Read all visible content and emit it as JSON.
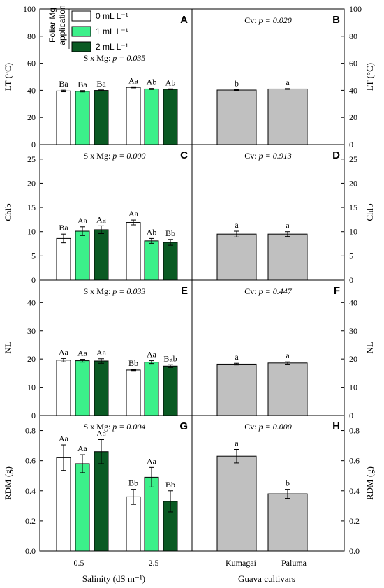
{
  "colors": {
    "control": "#ffffff",
    "mg1": "#3cf08a",
    "mg2": "#0a5a23",
    "cultivar": "#c0c0c0",
    "axis": "#000000"
  },
  "legend": {
    "title_line1": "Foliar Mg",
    "title_line2": "application",
    "entries": [
      "0 mL L⁻¹",
      "1 mL L⁻¹",
      "2 mL L⁻¹"
    ]
  },
  "x_left": {
    "label": "Salinity (dS m⁻¹)",
    "ticks": [
      "0.5",
      "2.5"
    ]
  },
  "x_right": {
    "label": "Guava cultivars",
    "ticks": [
      "Kumagai",
      "Paluma"
    ]
  },
  "chart_data": [
    {
      "type": "bar",
      "panel": "A",
      "ylabel": "LT (°C)",
      "ylim": [
        0,
        100
      ],
      "yticks": [
        0,
        20,
        40,
        60,
        80,
        100
      ],
      "test_label": "S x Mg: ",
      "p_label": "p = 0.035",
      "categories": [
        "0.5",
        "2.5"
      ],
      "series": [
        {
          "name": "0 mL L⁻¹",
          "values": [
            39.5,
            42.2
          ],
          "errors": [
            0.6,
            0.4
          ],
          "letters": [
            "Ba",
            "Aa"
          ]
        },
        {
          "name": "1 mL L⁻¹",
          "values": [
            39.3,
            41.0
          ],
          "errors": [
            0.5,
            0.4
          ],
          "letters": [
            "Ba",
            "Ab"
          ]
        },
        {
          "name": "2 mL L⁻¹",
          "values": [
            39.9,
            40.8
          ],
          "errors": [
            0.4,
            0.3
          ],
          "letters": [
            "Ba",
            "Ab"
          ]
        }
      ]
    },
    {
      "type": "bar",
      "panel": "B",
      "ylabel": "LT (°C)",
      "ylim": [
        0,
        100
      ],
      "yticks": [
        0,
        20,
        40,
        60,
        80,
        100
      ],
      "test_label": "Cv: ",
      "p_label": "p = 0.020",
      "categories": [
        "Kumagai",
        "Paluma"
      ],
      "values": [
        40.2,
        41.0
      ],
      "errors": [
        0.3,
        0.3
      ],
      "letters": [
        "b",
        "a"
      ]
    },
    {
      "type": "bar",
      "panel": "C",
      "ylabel": "Chlb",
      "ylim": [
        0,
        28
      ],
      "yticks": [
        0,
        5,
        10,
        15,
        20,
        25
      ],
      "test_label": "S x Mg: ",
      "p_label": "p = 0.000",
      "categories": [
        "0.5",
        "2.5"
      ],
      "series": [
        {
          "name": "0 mL L⁻¹",
          "values": [
            8.6,
            11.9
          ],
          "errors": [
            0.9,
            0.5
          ],
          "letters": [
            "Ba",
            "Aa"
          ]
        },
        {
          "name": "1 mL L⁻¹",
          "values": [
            10.1,
            8.1
          ],
          "errors": [
            0.9,
            0.5
          ],
          "letters": [
            "Aa",
            "Ab"
          ]
        },
        {
          "name": "2 mL L⁻¹",
          "values": [
            10.4,
            7.8
          ],
          "errors": [
            0.8,
            0.6
          ],
          "letters": [
            "Aa",
            "Bb"
          ]
        }
      ]
    },
    {
      "type": "bar",
      "panel": "D",
      "ylabel": "Chlb",
      "ylim": [
        0,
        28
      ],
      "yticks": [
        0,
        5,
        10,
        15,
        20,
        25
      ],
      "test_label": "Cv: ",
      "p_label": "p = 0.913",
      "categories": [
        "Kumagai",
        "Paluma"
      ],
      "values": [
        9.5,
        9.5
      ],
      "errors": [
        0.6,
        0.5
      ],
      "letters": [
        "a",
        "a"
      ]
    },
    {
      "type": "bar",
      "panel": "E",
      "ylabel": "NL",
      "ylim": [
        0,
        48
      ],
      "yticks": [
        0,
        10,
        20,
        30,
        40
      ],
      "test_label": "S x Mg: ",
      "p_label": "p = 0.033",
      "categories": [
        "0.5",
        "2.5"
      ],
      "series": [
        {
          "name": "0 mL L⁻¹",
          "values": [
            19.6,
            16.1
          ],
          "errors": [
            0.6,
            0.2
          ],
          "letters": [
            "Aa",
            "Bb"
          ]
        },
        {
          "name": "1 mL L⁻¹",
          "values": [
            19.4,
            18.9
          ],
          "errors": [
            0.5,
            0.5
          ],
          "letters": [
            "Aa",
            "Aa"
          ]
        },
        {
          "name": "2 mL L⁻¹",
          "values": [
            19.3,
            17.5
          ],
          "errors": [
            0.8,
            0.5
          ],
          "letters": [
            "Aa",
            "Bab"
          ]
        }
      ]
    },
    {
      "type": "bar",
      "panel": "F",
      "ylabel": "NL",
      "ylim": [
        0,
        48
      ],
      "yticks": [
        0,
        10,
        20,
        30,
        40
      ],
      "test_label": "Cv: ",
      "p_label": "p = 0.447",
      "categories": [
        "Kumagai",
        "Paluma"
      ],
      "values": [
        18.2,
        18.6
      ],
      "errors": [
        0.3,
        0.4
      ],
      "letters": [
        "a",
        "a"
      ]
    },
    {
      "type": "bar",
      "panel": "G",
      "ylabel": "RDM (g)",
      "ylim": [
        0,
        0.9
      ],
      "yticks": [
        0.0,
        0.2,
        0.4,
        0.6,
        0.8
      ],
      "test_label": "S x Mg: ",
      "p_label": "p = 0.004",
      "categories": [
        "0.5",
        "2.5"
      ],
      "series": [
        {
          "name": "0 mL L⁻¹",
          "values": [
            0.62,
            0.36
          ],
          "errors": [
            0.085,
            0.05
          ],
          "letters": [
            "Aa",
            "Bb"
          ]
        },
        {
          "name": "1 mL L⁻¹",
          "values": [
            0.58,
            0.49
          ],
          "errors": [
            0.06,
            0.065
          ],
          "letters": [
            "Aa",
            "Aa"
          ]
        },
        {
          "name": "2 mL L⁻¹",
          "values": [
            0.66,
            0.33
          ],
          "errors": [
            0.08,
            0.07
          ],
          "letters": [
            "Aa",
            "Bb"
          ]
        }
      ]
    },
    {
      "type": "bar",
      "panel": "H",
      "ylabel": "RDM (g)",
      "ylim": [
        0,
        0.9
      ],
      "yticks": [
        0.0,
        0.2,
        0.4,
        0.6,
        0.8
      ],
      "test_label": "Cv: ",
      "p_label": "p = 0.000",
      "categories": [
        "Kumagai",
        "Paluma"
      ],
      "values": [
        0.63,
        0.38
      ],
      "errors": [
        0.045,
        0.03
      ],
      "letters": [
        "a",
        "b"
      ]
    }
  ]
}
